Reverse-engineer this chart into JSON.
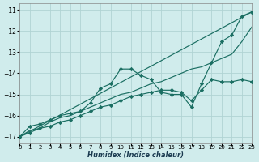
{
  "xlabel": "Humidex (Indice chaleur)",
  "bg_color": "#d0ecec",
  "grid_color": "#b0d4d4",
  "line_color": "#1a6e62",
  "xlim": [
    0,
    23
  ],
  "ylim": [
    -17.3,
    -10.7
  ],
  "yticks": [
    -17,
    -16,
    -15,
    -14,
    -13,
    -12,
    -11
  ],
  "xticks": [
    0,
    1,
    2,
    3,
    4,
    5,
    6,
    7,
    8,
    9,
    10,
    11,
    12,
    13,
    14,
    15,
    16,
    17,
    18,
    19,
    20,
    21,
    22,
    23
  ],
  "line1_x": [
    0,
    1,
    2,
    3,
    4,
    5,
    6,
    7,
    8,
    9,
    10,
    11,
    12,
    13,
    14,
    15,
    16,
    17,
    18,
    19,
    20,
    21,
    22,
    23
  ],
  "line1_y": [
    -17.0,
    -16.5,
    -16.4,
    -16.2,
    -16.0,
    -15.9,
    -15.8,
    -15.4,
    -14.7,
    -14.5,
    -13.8,
    -13.8,
    -14.1,
    -14.3,
    -14.9,
    -15.0,
    -15.0,
    -15.6,
    -14.5,
    -13.5,
    -12.5,
    -12.2,
    -11.3,
    -11.1
  ],
  "line2_x": [
    0,
    1,
    2,
    3,
    4,
    5,
    6,
    7,
    8,
    9,
    10,
    11,
    12,
    13,
    14,
    15,
    16,
    17,
    18,
    19,
    20,
    21,
    22,
    23
  ],
  "line2_y": [
    -17.0,
    -16.7,
    -16.6,
    -16.3,
    -16.1,
    -16.0,
    -15.8,
    -15.6,
    -15.4,
    -15.2,
    -15.0,
    -14.9,
    -14.7,
    -14.5,
    -14.4,
    -14.2,
    -14.0,
    -13.8,
    -13.7,
    -13.5,
    -13.3,
    -13.1,
    -12.5,
    -11.8
  ],
  "line3_x": [
    0,
    23
  ],
  "line3_y": [
    -17.0,
    -11.1
  ],
  "line4_x": [
    0,
    1,
    2,
    3,
    4,
    5,
    6,
    7,
    8,
    9,
    10,
    11,
    12,
    13,
    14,
    15,
    16,
    17,
    18,
    19,
    20,
    21,
    22,
    23
  ],
  "line4_y": [
    -17.0,
    -16.8,
    -16.6,
    -16.5,
    -16.3,
    -16.2,
    -16.0,
    -15.8,
    -15.6,
    -15.5,
    -15.3,
    -15.1,
    -15.0,
    -14.9,
    -14.8,
    -14.8,
    -14.9,
    -15.3,
    -14.8,
    -14.3,
    -14.4,
    -14.4,
    -14.3,
    -14.4
  ]
}
